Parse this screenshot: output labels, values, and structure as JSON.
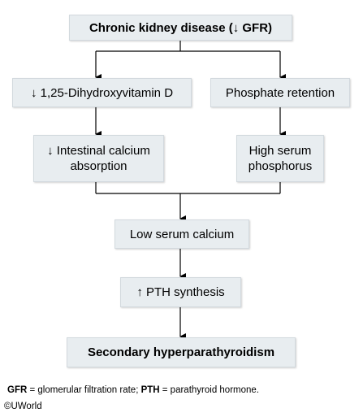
{
  "nodes": {
    "ckd": "Chronic kidney disease (↓ GFR)",
    "vitd": "↓ 1,25-Dihydroxyvitamin D",
    "phos_ret": "Phosphate retention",
    "ca_abs": "↓ Intestinal calcium absorption",
    "high_phos": "High serum phosphorus",
    "low_ca": "Low serum calcium",
    "pth": "↑ PTH synthesis",
    "shpt": "Secondary hyperparathyroidism"
  },
  "footnote": {
    "gfr_abbr": "GFR",
    "gfr_def": " = glomerular filtration rate; ",
    "pth_abbr": "PTH",
    "pth_def": " = parathyroid hormone."
  },
  "copyright": "©UWorld"
}
